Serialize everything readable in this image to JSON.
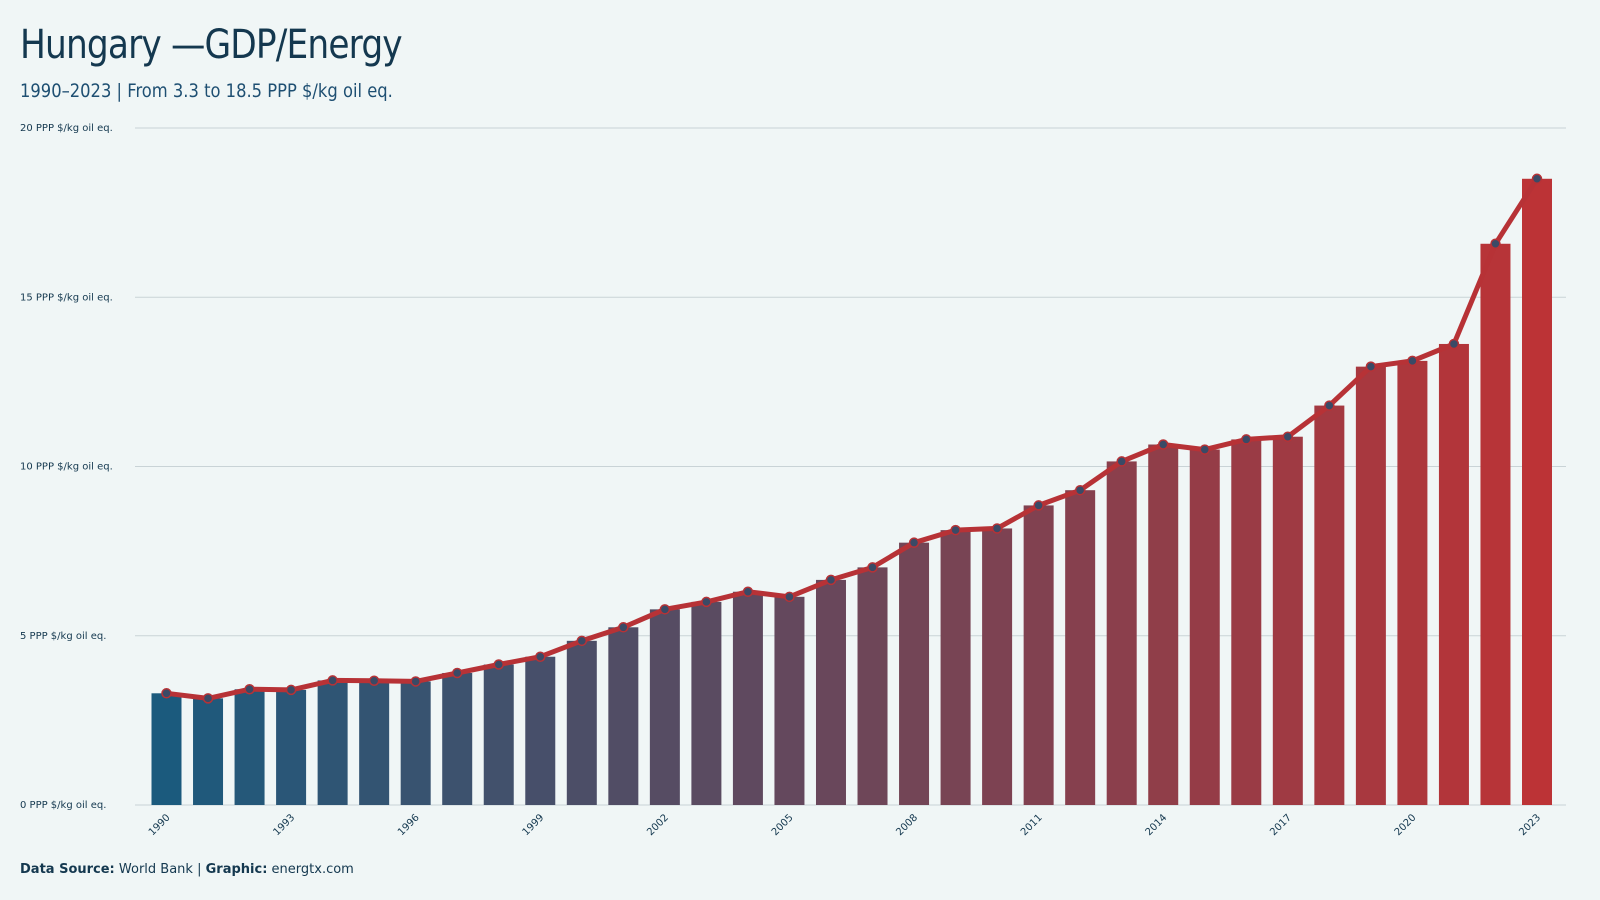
{
  "header": {
    "title": "Hungary —GDP/Energy",
    "subtitle": "1990–2023 | From 3.3 to 18.5 PPP $/kg oil eq."
  },
  "footer": {
    "source_label": "Data Source:",
    "source_value": "World Bank",
    "separator": "|",
    "graphic_label": "Graphic:",
    "graphic_value": "energtx.com"
  },
  "colors": {
    "background": "#f0f6f6",
    "bar_start": "#1b5a7d",
    "bar_end": "#bc3336",
    "line": "#b73236",
    "marker_fill": "#3a4a66",
    "gridline": "#c9d3d6",
    "text": "#14384f"
  },
  "chart_data": {
    "type": "bar",
    "overlay": "line",
    "ylim": [
      0,
      20
    ],
    "y_ticks": [
      0,
      5,
      10,
      15,
      20
    ],
    "y_tick_labels": [
      "0 PPP $/kg oil eq.",
      "5 PPP $/kg oil eq.",
      "10 PPP $/kg oil eq.",
      "15 PPP $/kg oil eq.",
      "20 PPP $/kg oil eq."
    ],
    "x_tick_labels": [
      "1990",
      "1993",
      "1996",
      "1999",
      "2002",
      "2005",
      "2008",
      "2011",
      "2014",
      "2017",
      "2020",
      "2023"
    ],
    "grid": true,
    "categories": [
      "1990",
      "1991",
      "1992",
      "1993",
      "1994",
      "1995",
      "1996",
      "1997",
      "1998",
      "1999",
      "2000",
      "2001",
      "2002",
      "2003",
      "2004",
      "2005",
      "2006",
      "2007",
      "2008",
      "2009",
      "2010",
      "2011",
      "2012",
      "2013",
      "2014",
      "2015",
      "2016",
      "2017",
      "2018",
      "2019",
      "2020",
      "2021",
      "2022",
      "2023"
    ],
    "values": [
      3.3,
      3.15,
      3.42,
      3.4,
      3.68,
      3.67,
      3.65,
      3.9,
      4.15,
      4.38,
      4.85,
      5.25,
      5.78,
      6.0,
      6.3,
      6.15,
      6.65,
      7.02,
      7.75,
      8.12,
      8.17,
      8.85,
      9.3,
      10.15,
      10.65,
      10.5,
      10.8,
      10.88,
      11.8,
      12.95,
      13.12,
      13.62,
      16.58,
      18.5
    ]
  }
}
